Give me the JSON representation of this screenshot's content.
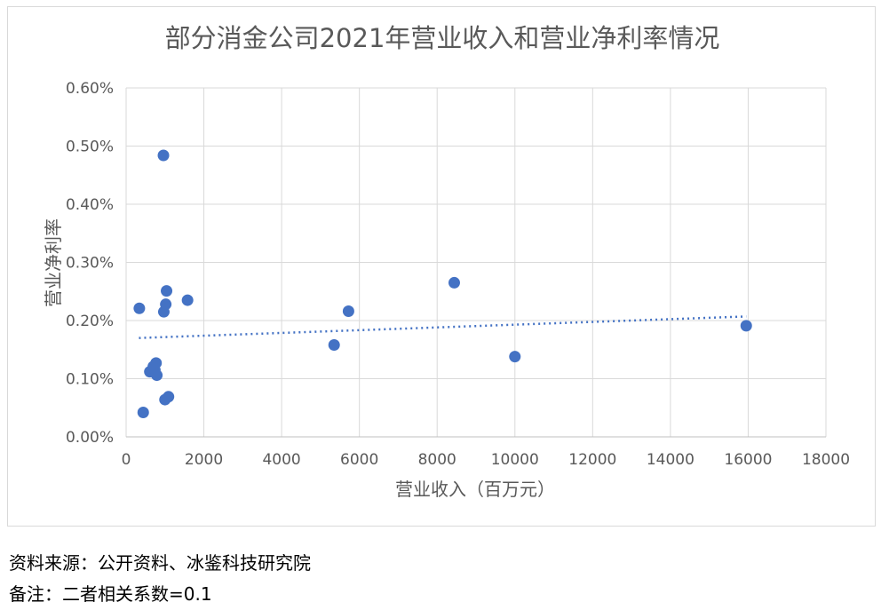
{
  "chart_data": {
    "type": "scatter",
    "title": "部分消金公司2021年营业收入和营业净利率情况",
    "xlabel": "营业收入（百万元）",
    "ylabel": "营业净利率",
    "xlim": [
      0,
      18000
    ],
    "ylim": [
      0,
      0.006
    ],
    "x_ticks": [
      "0",
      "2000",
      "4000",
      "6000",
      "8000",
      "10000",
      "12000",
      "14000",
      "16000",
      "18000"
    ],
    "y_ticks": [
      "0.00%",
      "0.10%",
      "0.20%",
      "0.30%",
      "0.40%",
      "0.50%",
      "0.60%"
    ],
    "grid": true,
    "legend": "none",
    "marker_color": "#4472c4",
    "trendline": {
      "type": "linear",
      "from": [
        330,
        0.0017
      ],
      "to": [
        15950,
        0.00207
      ]
    },
    "points": [
      {
        "x": 340,
        "y": 0.00221
      },
      {
        "x": 440,
        "y": 0.00042
      },
      {
        "x": 610,
        "y": 0.00112
      },
      {
        "x": 700,
        "y": 0.00121
      },
      {
        "x": 740,
        "y": 0.00115
      },
      {
        "x": 770,
        "y": 0.00127
      },
      {
        "x": 790,
        "y": 0.00106
      },
      {
        "x": 960,
        "y": 0.00484
      },
      {
        "x": 970,
        "y": 0.00215
      },
      {
        "x": 1000,
        "y": 0.00064
      },
      {
        "x": 1020,
        "y": 0.00228
      },
      {
        "x": 1040,
        "y": 0.00251
      },
      {
        "x": 1090,
        "y": 0.00069
      },
      {
        "x": 1580,
        "y": 0.00235
      },
      {
        "x": 5350,
        "y": 0.00158
      },
      {
        "x": 5720,
        "y": 0.00216
      },
      {
        "x": 8440,
        "y": 0.00265
      },
      {
        "x": 10000,
        "y": 0.00138
      },
      {
        "x": 15950,
        "y": 0.00191
      }
    ]
  },
  "notes": {
    "source": "资料来源：公开资料、冰鉴科技研究院",
    "remark": "备注：二者相关系数=0.1"
  }
}
